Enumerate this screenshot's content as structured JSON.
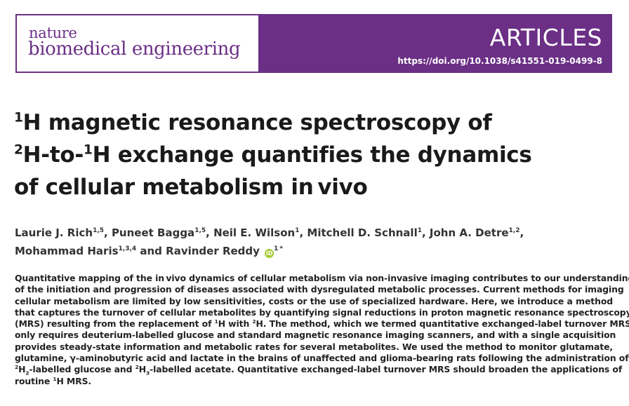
{
  "journal": {
    "name_top": "nature",
    "name_bottom": "biomedical engineering",
    "section": "ARTICLES",
    "doi": "https://doi.org/10.1038/s41551-019-0499-8"
  },
  "title": {
    "l1_sup": "1",
    "l1_text": "H magnetic resonance spectroscopy of",
    "l2_sup1": "2",
    "l2_text1": "H-to-",
    "l2_sup2": "1",
    "l2_text2": "H exchange quantifies the dynamics",
    "l3_text": "of cellular metabolism in vivo"
  },
  "authors": [
    {
      "name": "Laurie J. Rich",
      "aff": "1,5"
    },
    {
      "name": "Puneet Bagga",
      "aff": "1,5"
    },
    {
      "name": "Neil E. Wilson",
      "aff": "1"
    },
    {
      "name": "Mitchell D. Schnall",
      "aff": "1"
    },
    {
      "name": "John A. Detre",
      "aff": "1,2"
    },
    {
      "name": "Mohammad Haris",
      "aff": "1,3,4"
    },
    {
      "name": "Ravinder Reddy",
      "aff": "1 *"
    }
  ],
  "authors_sep": ", ",
  "authors_and": " and ",
  "orcid_label": "iD",
  "abstract": {
    "l1": "Quantitative mapping of the in vivo dynamics of cellular metabolism via non-invasive imaging contributes to our understanding",
    "l2": "of the initiation and progression of diseases associated with dysregulated metabolic processes. Current methods for imaging",
    "l3": "cellular metabolism are limited by low sensitivities, costs or the use of specialized hardware. Here, we introduce a method",
    "l4": "that captures the turnover of cellular metabolites by quantifying signal reductions in proton magnetic resonance spectroscopy",
    "l5a": "(MRS) resulting from the replacement of ",
    "l5_sup1": "1",
    "l5b": "H with ",
    "l5_sup2": "2",
    "l5c": "H. The method, which we termed quantitative exchanged-label turnover MRS,",
    "l6": "only requires deuterium-labelled glucose and standard magnetic resonance imaging scanners, and with a single acquisition",
    "l7": "provides steady-state information and metabolic rates for several metabolites. We used the method to monitor glutamate,",
    "l8": "glutamine, γ-aminobutyric acid and lactate in the brains of unaffected and glioma-bearing rats following the administration of",
    "l9_sup1": "2",
    "l9a": "H",
    "l9_sub1": "2",
    "l9b": "-labelled glucose and ",
    "l9_sup2": "2",
    "l9c": "H",
    "l9_sub2": "3",
    "l9d": "-labelled acetate. Quantitative exchanged-label turnover MRS should broaden the applications of",
    "l10a": "routine ",
    "l10_sup": "1",
    "l10b": "H MRS."
  }
}
